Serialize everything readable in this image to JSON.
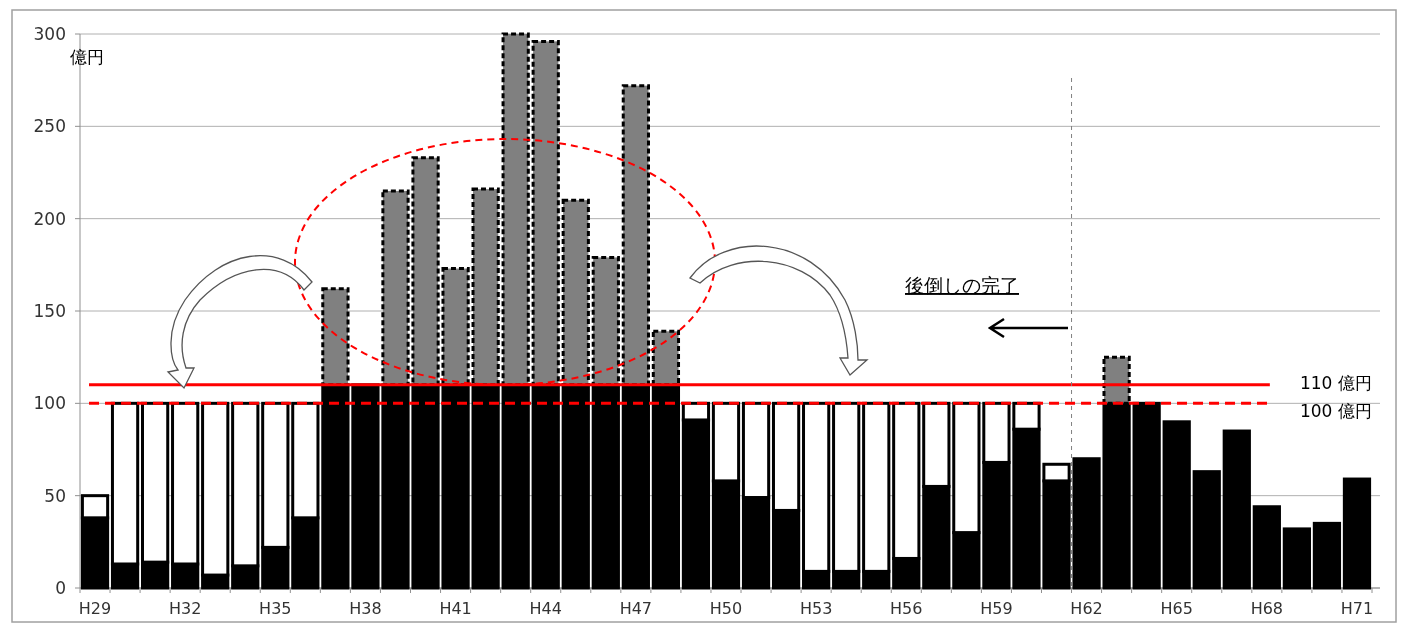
{
  "chart_data": {
    "type": "bar",
    "stacked": true,
    "ylabel": "億円",
    "categories": [
      "H29",
      null,
      null,
      "H32",
      null,
      null,
      "H35",
      null,
      null,
      "H38",
      null,
      null,
      "H41",
      null,
      null,
      "H44",
      null,
      null,
      "H47",
      null,
      null,
      "H50",
      null,
      null,
      "H53",
      null,
      null,
      "H56",
      null,
      null,
      "H59",
      null,
      null,
      "H62",
      null,
      null,
      "H65",
      null,
      null,
      "H68",
      null,
      null,
      "H71"
    ],
    "series": [
      {
        "color": "#000000",
        "values": [
          38,
          13,
          14,
          13,
          7,
          12,
          22,
          38,
          110,
          110,
          110,
          110,
          110,
          110,
          110,
          110,
          110,
          110,
          110,
          110,
          91,
          58,
          49,
          42,
          9,
          9,
          9,
          16,
          55,
          30,
          68,
          86,
          58,
          70,
          100,
          100,
          90,
          63,
          85,
          44,
          32,
          35,
          59
        ]
      },
      {
        "color": "#ffffff",
        "values": [
          12,
          87,
          86,
          87,
          93,
          88,
          78,
          62,
          null,
          null,
          null,
          null,
          null,
          null,
          null,
          null,
          null,
          null,
          null,
          null,
          9,
          42,
          51,
          58,
          91,
          91,
          91,
          84,
          45,
          70,
          32,
          14,
          9,
          null,
          null,
          null,
          null,
          null,
          null,
          null,
          null,
          null,
          null
        ]
      },
      {
        "color": "#808080",
        "line_style": "dashed",
        "values": [
          null,
          null,
          null,
          null,
          null,
          null,
          null,
          null,
          52,
          null,
          105,
          123,
          63,
          106,
          190,
          186,
          100,
          69,
          162,
          29,
          null,
          null,
          null,
          null,
          null,
          null,
          null,
          null,
          null,
          null,
          null,
          null,
          null,
          null,
          25,
          null,
          null,
          null,
          null,
          null,
          null,
          null,
          null
        ]
      }
    ],
    "ylim": [
      0,
      300
    ],
    "yticks": [
      0,
      50,
      100,
      150,
      200,
      250,
      300
    ],
    "grid": "y",
    "ref_lines": [
      {
        "axis": "y",
        "value": 110,
        "label": "110 億円",
        "color": "#ff0000",
        "line_style": "solid"
      },
      {
        "axis": "y",
        "value": 100,
        "label": "100 億円",
        "color": "#ff0000",
        "line_style": "dashed"
      },
      {
        "axis": "x",
        "value": "H62",
        "color": "#808080",
        "line_style": "dotted"
      }
    ],
    "annotations": [
      "後倒しの完了"
    ]
  }
}
